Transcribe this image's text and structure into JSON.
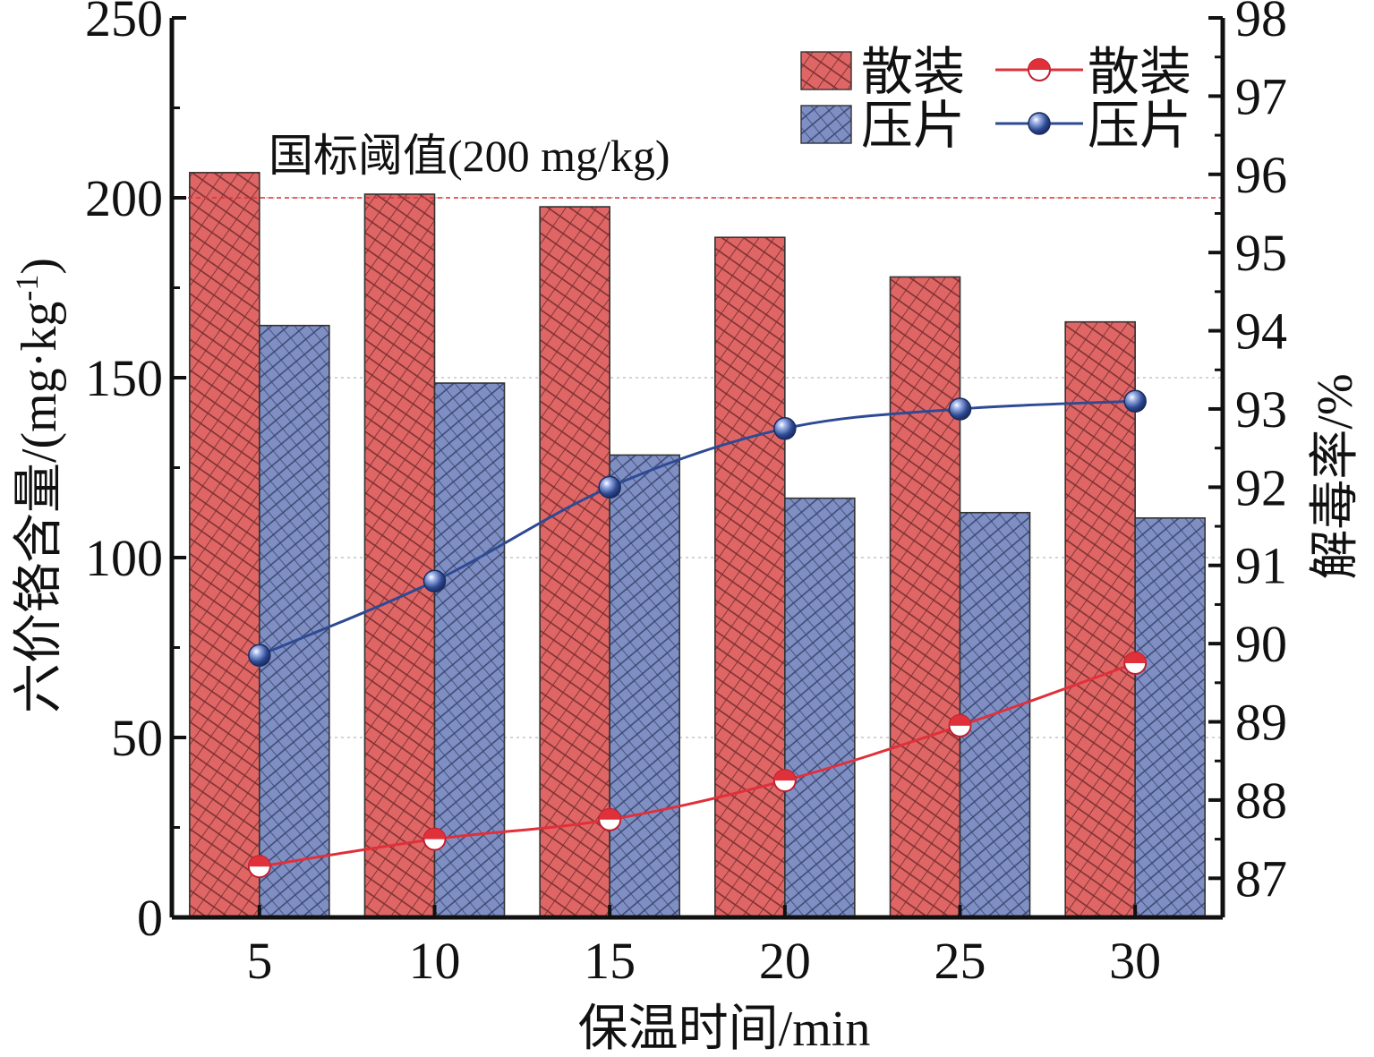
{
  "chart_data": {
    "type": "bar+line",
    "categories": [
      "5",
      "10",
      "15",
      "20",
      "25",
      "30"
    ],
    "xlabel": "保温时间/min",
    "ylabel_left": "六价铬含量/(mg·kg-1)",
    "ylabel_left_main": "六价铬含量/(mg·kg",
    "ylabel_left_sup": "-1",
    "ylabel_left_close": ")",
    "ylabel_right": "解毒率/%",
    "ylim_left": [
      0,
      250
    ],
    "yticks_left": [
      0,
      50,
      100,
      150,
      200,
      250
    ],
    "ylim_right": [
      86.5,
      98
    ],
    "yticks_right": [
      87,
      88,
      89,
      90,
      91,
      92,
      93,
      94,
      95,
      96,
      97,
      98
    ],
    "bar_series": [
      {
        "name": "散装",
        "color": "#e06666",
        "values": [
          207,
          201,
          197.5,
          189,
          178,
          165.5
        ]
      },
      {
        "name": "压片",
        "color": "#7f8fc4",
        "values": [
          164.5,
          148.5,
          128.5,
          116.5,
          112.5,
          111
        ]
      }
    ],
    "line_series": [
      {
        "name": "散装",
        "color": "#e0303a",
        "values": [
          87.15,
          87.5,
          87.75,
          88.25,
          88.95,
          89.75
        ]
      },
      {
        "name": "压片",
        "color": "#2e4a94",
        "values": [
          89.85,
          90.8,
          92.0,
          92.75,
          93.0,
          93.1
        ]
      }
    ],
    "threshold": {
      "value": 200,
      "label": "国标阈值(200 mg/kg)",
      "color": "#e03030"
    },
    "legend_position": "top-right"
  }
}
